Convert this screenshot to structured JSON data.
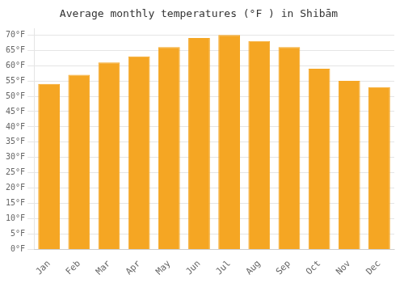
{
  "chart_data": {
    "type": "bar",
    "title": "Average monthly temperatures (°F ) in Shibām",
    "categories": [
      "Jan",
      "Feb",
      "Mar",
      "Apr",
      "May",
      "Jun",
      "Jul",
      "Aug",
      "Sep",
      "Oct",
      "Nov",
      "Dec"
    ],
    "values": [
      54,
      57,
      61,
      63,
      66,
      69,
      70,
      68,
      66,
      59,
      55,
      53
    ],
    "color": "#F5A623",
    "ylim": [
      0,
      72
    ],
    "yticks": [
      {
        "value": 0,
        "label": "0°F"
      },
      {
        "value": 5,
        "label": "5°F"
      },
      {
        "value": 10,
        "label": "10°F"
      },
      {
        "value": 15,
        "label": "15°F"
      },
      {
        "value": 20,
        "label": "20°F"
      },
      {
        "value": 25,
        "label": "25°F"
      },
      {
        "value": 30,
        "label": "30°F"
      },
      {
        "value": 35,
        "label": "35°F"
      },
      {
        "value": 40,
        "label": "40°F"
      },
      {
        "value": 45,
        "label": "45°F"
      },
      {
        "value": 50,
        "label": "50°F"
      },
      {
        "value": 55,
        "label": "55°F"
      },
      {
        "value": 60,
        "label": "60°F"
      },
      {
        "value": 65,
        "label": "65°F"
      },
      {
        "value": 70,
        "label": "70°F"
      }
    ],
    "grid": true
  }
}
